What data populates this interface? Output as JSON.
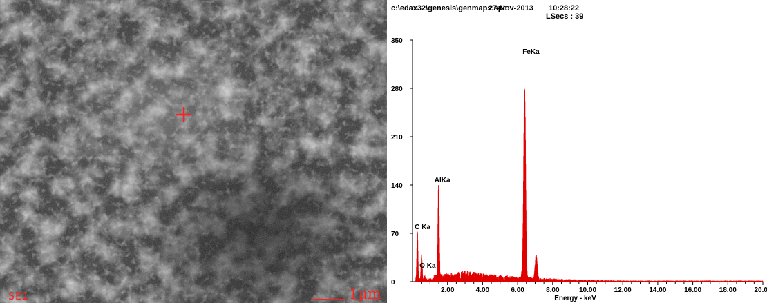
{
  "sem": {
    "mode": "SE1",
    "scale_bar": "1μm",
    "marker_color": "#ff2020"
  },
  "spectrum": {
    "file_path": "c:\\edax32\\genesis\\genmaps.spc",
    "date": "27-Nov-2013",
    "time": "10:28:22",
    "live_secs": "LSecs : 39"
  },
  "chart_data": {
    "type": "line",
    "title": "",
    "xlabel": "Energy - keV",
    "ylabel": "",
    "xlim": [
      0,
      20
    ],
    "ylim": [
      0,
      350
    ],
    "x_ticks": [
      2,
      4,
      6,
      8,
      10,
      12,
      14,
      16,
      18,
      20
    ],
    "x_tick_labels": [
      "2.00",
      "4.00",
      "6.00",
      "8.00",
      "10.00",
      "12.00",
      "14.00",
      "16.00",
      "18.00",
      "20.00"
    ],
    "y_ticks": [
      0,
      70,
      140,
      210,
      280,
      350
    ],
    "y_tick_labels": [
      "0",
      "70",
      "140",
      "210",
      "280",
      "350"
    ],
    "grid": false,
    "color": "#e00000",
    "series": [
      {
        "values": [
          {
            "x": 0.28,
            "y": 72
          },
          {
            "x": 0.52,
            "y": 38
          },
          {
            "x": 1.49,
            "y": 140
          },
          {
            "x": 6.4,
            "y": 280
          },
          {
            "x": 7.06,
            "y": 38
          }
        ]
      }
    ],
    "annotations": [
      {
        "label": "C Ka",
        "x": 0.28,
        "y": 72
      },
      {
        "label": "O Ka",
        "x": 0.52,
        "y": 38
      },
      {
        "label": "AlKa",
        "x": 1.49,
        "y": 140
      },
      {
        "label": "FeKa",
        "x": 6.4,
        "y": 280
      }
    ]
  }
}
